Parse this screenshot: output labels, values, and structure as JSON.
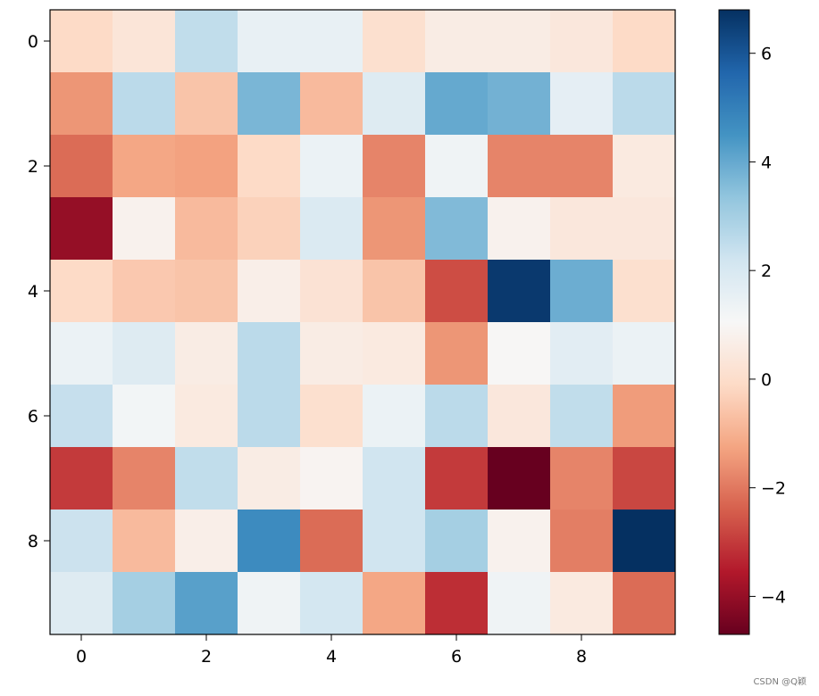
{
  "chart_data": {
    "type": "heatmap",
    "colormap": "RdBu",
    "vmin": -4.7,
    "vmax": 6.8,
    "rows": 10,
    "cols": 10,
    "values": [
      [
        -0.1,
        0.3,
        2.5,
        1.5,
        1.5,
        0.1,
        0.6,
        0.6,
        0.4,
        -0.1
      ],
      [
        -1.5,
        2.6,
        -0.6,
        3.7,
        -0.8,
        1.8,
        4.0,
        3.8,
        1.6,
        2.6
      ],
      [
        -2.2,
        -1.2,
        -1.3,
        -0.1,
        1.4,
        -1.8,
        1.3,
        -1.8,
        -1.8,
        0.5
      ],
      [
        -4.0,
        0.8,
        -0.8,
        -0.3,
        1.9,
        -1.5,
        3.6,
        0.8,
        0.4,
        0.4
      ],
      [
        -0.1,
        -0.5,
        -0.6,
        0.7,
        0.2,
        -0.6,
        -2.7,
        6.6,
        3.9,
        0.1
      ],
      [
        1.4,
        1.8,
        0.6,
        2.6,
        0.6,
        0.5,
        -1.5,
        1.0,
        1.7,
        1.4
      ],
      [
        2.4,
        1.2,
        0.5,
        2.6,
        0.1,
        1.4,
        2.6,
        0.4,
        2.5,
        -1.4
      ],
      [
        -3.0,
        -1.8,
        2.5,
        0.6,
        0.9,
        2.2,
        -3.0,
        -4.7,
        -1.8,
        -2.8
      ],
      [
        2.3,
        -0.8,
        0.7,
        4.7,
        -2.2,
        2.2,
        3.0,
        0.8,
        -1.9,
        6.8
      ],
      [
        1.8,
        3.0,
        4.2,
        1.3,
        2.1,
        -1.2,
        -3.2,
        1.3,
        0.5,
        -2.2
      ]
    ],
    "x_ticks": [
      "0",
      "2",
      "4",
      "6",
      "8"
    ],
    "y_ticks": [
      "0",
      "2",
      "4",
      "6",
      "8"
    ],
    "colorbar_ticks": [
      "−4",
      "−2",
      "0",
      "2",
      "4",
      "6"
    ]
  },
  "watermark": "CSDN @Q颖"
}
